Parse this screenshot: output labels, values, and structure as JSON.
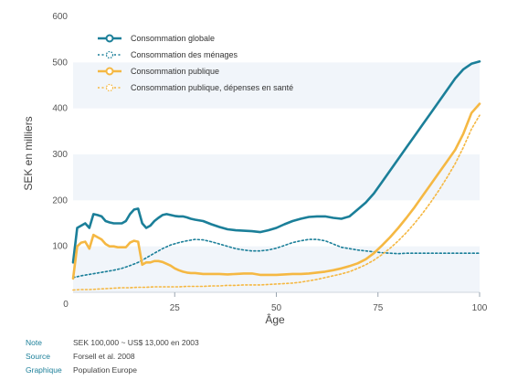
{
  "chart_data": {
    "type": "line",
    "title": "",
    "xlabel": "Âge",
    "ylabel": "SEK en milliers",
    "xlim": [
      0,
      100
    ],
    "ylim": [
      0,
      600
    ],
    "xticks": [
      0,
      25,
      50,
      75,
      100
    ],
    "yticks": [
      100,
      200,
      300,
      400,
      500,
      600
    ],
    "grid": "horizontal bands",
    "legend": "top-left",
    "series": [
      {
        "name": "Consommation globale",
        "color": "#1b7f99",
        "style": "solid",
        "x": [
          0,
          1,
          2,
          3,
          4,
          5,
          6,
          7,
          8,
          9,
          10,
          11,
          12,
          13,
          14,
          15,
          16,
          17,
          18,
          19,
          20,
          21,
          22,
          23,
          24,
          25,
          26,
          27,
          28,
          29,
          30,
          32,
          34,
          36,
          38,
          40,
          42,
          44,
          46,
          48,
          50,
          52,
          54,
          56,
          58,
          60,
          62,
          64,
          66,
          68,
          70,
          72,
          74,
          76,
          78,
          80,
          82,
          84,
          86,
          88,
          90,
          92,
          94,
          96,
          98,
          100
        ],
        "y": [
          65,
          140,
          145,
          150,
          140,
          170,
          168,
          165,
          155,
          152,
          150,
          150,
          150,
          155,
          170,
          180,
          182,
          150,
          140,
          145,
          155,
          162,
          168,
          170,
          168,
          166,
          165,
          165,
          163,
          160,
          158,
          155,
          148,
          142,
          137,
          135,
          134,
          133,
          131,
          135,
          140,
          148,
          155,
          160,
          164,
          165,
          165,
          162,
          160,
          165,
          180,
          195,
          215,
          240,
          265,
          290,
          315,
          340,
          365,
          390,
          415,
          440,
          465,
          485,
          497,
          502
        ]
      },
      {
        "name": "Consommation des ménages",
        "color": "#1b7f99",
        "style": "dotted",
        "x": [
          0,
          2,
          4,
          6,
          8,
          10,
          12,
          14,
          16,
          18,
          20,
          22,
          24,
          26,
          28,
          30,
          32,
          34,
          36,
          38,
          40,
          42,
          44,
          46,
          48,
          50,
          52,
          54,
          56,
          58,
          60,
          62,
          64,
          66,
          68,
          70,
          72,
          74,
          76,
          78,
          80,
          82,
          84,
          86,
          88,
          90,
          92,
          94,
          96,
          98,
          100
        ],
        "y": [
          32,
          36,
          39,
          42,
          45,
          48,
          52,
          58,
          65,
          75,
          85,
          95,
          103,
          108,
          112,
          115,
          114,
          110,
          105,
          100,
          95,
          92,
          90,
          90,
          92,
          96,
          102,
          108,
          112,
          115,
          115,
          112,
          105,
          98,
          95,
          92,
          90,
          88,
          86,
          85,
          84,
          85,
          85,
          85,
          85,
          85,
          85,
          85,
          85,
          85,
          85
        ]
      },
      {
        "name": "Consommation publique",
        "color": "#f5b843",
        "style": "solid",
        "x": [
          0,
          1,
          2,
          3,
          4,
          5,
          6,
          7,
          8,
          9,
          10,
          11,
          12,
          13,
          14,
          15,
          16,
          17,
          18,
          19,
          20,
          21,
          22,
          23,
          24,
          25,
          26,
          27,
          28,
          29,
          30,
          32,
          34,
          36,
          38,
          40,
          42,
          44,
          46,
          48,
          50,
          52,
          54,
          56,
          58,
          60,
          62,
          64,
          66,
          68,
          70,
          72,
          74,
          76,
          78,
          80,
          82,
          84,
          86,
          88,
          90,
          92,
          94,
          96,
          98,
          100
        ],
        "y": [
          30,
          100,
          108,
          110,
          95,
          125,
          120,
          115,
          105,
          100,
          100,
          98,
          98,
          98,
          108,
          112,
          110,
          60,
          65,
          65,
          68,
          68,
          66,
          62,
          58,
          52,
          48,
          45,
          43,
          42,
          42,
          40,
          40,
          40,
          39,
          40,
          41,
          41,
          38,
          38,
          38,
          39,
          40,
          40,
          41,
          43,
          45,
          48,
          52,
          57,
          63,
          72,
          85,
          102,
          120,
          140,
          162,
          185,
          210,
          235,
          260,
          285,
          310,
          345,
          390,
          410
        ]
      },
      {
        "name": "Consommation publique, dépenses en santé",
        "color": "#f5b843",
        "style": "dotted",
        "x": [
          0,
          2,
          4,
          6,
          8,
          10,
          12,
          14,
          16,
          18,
          20,
          22,
          24,
          26,
          28,
          30,
          32,
          34,
          36,
          38,
          40,
          42,
          44,
          46,
          48,
          50,
          52,
          54,
          56,
          58,
          60,
          62,
          64,
          66,
          68,
          70,
          72,
          74,
          76,
          78,
          80,
          82,
          84,
          86,
          88,
          90,
          92,
          94,
          96,
          98,
          100
        ],
        "y": [
          5,
          6,
          6,
          7,
          8,
          9,
          10,
          10,
          11,
          11,
          12,
          12,
          12,
          12,
          13,
          13,
          13,
          14,
          14,
          15,
          15,
          16,
          16,
          16,
          17,
          18,
          19,
          20,
          22,
          25,
          28,
          32,
          36,
          40,
          45,
          52,
          60,
          70,
          82,
          96,
          112,
          130,
          150,
          172,
          196,
          222,
          250,
          280,
          315,
          355,
          385
        ]
      }
    ]
  },
  "footer": [
    {
      "key": "Note",
      "value": "SEK 100,000 ~ US$ 13,000 en 2003"
    },
    {
      "key": "Source",
      "value": "Forsell et al. 2008"
    },
    {
      "key": "Graphique",
      "value": "Population Europe"
    }
  ]
}
